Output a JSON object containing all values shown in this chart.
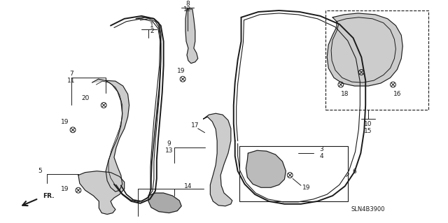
{
  "bg_color": "#ffffff",
  "diagram_code": "SLN4B3900",
  "fig_width": 6.4,
  "fig_height": 3.19,
  "dpi": 100,
  "line_color": "#1a1a1a",
  "line_width": 0.7
}
